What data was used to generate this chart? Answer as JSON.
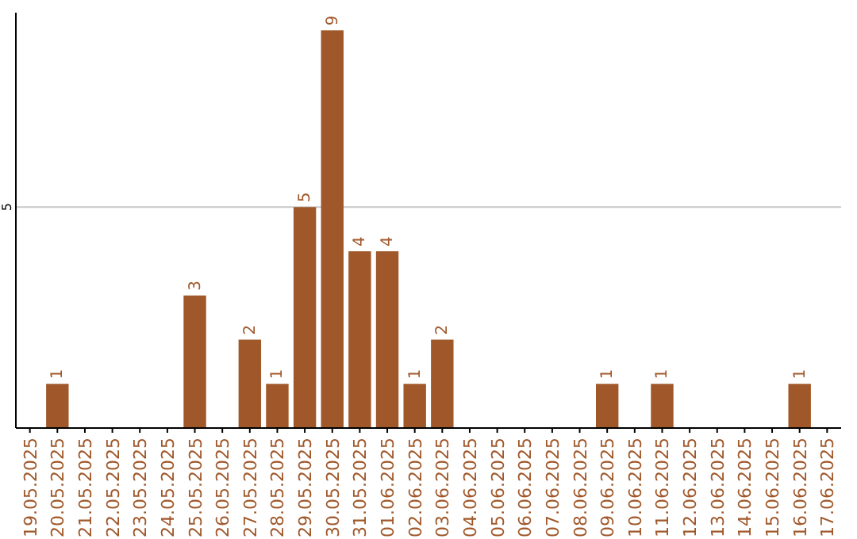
{
  "chart_data": {
    "type": "bar",
    "categories": [
      "19.05.2025",
      "20.05.2025",
      "21.05.2025",
      "22.05.2025",
      "23.05.2025",
      "24.05.2025",
      "25.05.2025",
      "26.05.2025",
      "27.05.2025",
      "28.05.2025",
      "29.05.2025",
      "30.05.2025",
      "31.05.2025",
      "01.06.2025",
      "02.06.2025",
      "03.06.2025",
      "04.06.2025",
      "05.06.2025",
      "06.06.2025",
      "07.06.2025",
      "08.06.2025",
      "09.06.2025",
      "10.06.2025",
      "11.06.2025",
      "12.06.2025",
      "13.06.2025",
      "14.06.2025",
      "15.06.2025",
      "16.06.2025",
      "17.06.2025"
    ],
    "values": [
      0,
      1,
      0,
      0,
      0,
      0,
      3,
      0,
      2,
      1,
      5,
      9,
      4,
      4,
      1,
      2,
      0,
      0,
      0,
      0,
      0,
      1,
      0,
      1,
      0,
      0,
      0,
      0,
      1,
      0
    ],
    "value_labels": [
      null,
      "1",
      null,
      null,
      null,
      null,
      "3",
      null,
      "2",
      "1",
      "5",
      "9",
      "4",
      "4",
      "1",
      "2",
      null,
      null,
      null,
      null,
      null,
      "1",
      null,
      "1",
      null,
      null,
      null,
      null,
      "1",
      null
    ],
    "color": "#a0582a",
    "ylim": [
      0,
      9.4
    ],
    "yticks": [
      5
    ],
    "grid": "y"
  }
}
